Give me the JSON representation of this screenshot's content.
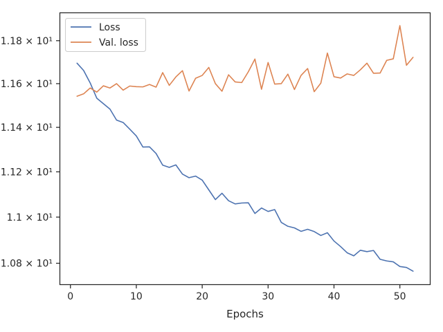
{
  "chart_data": {
    "type": "line",
    "title": "",
    "xlabel": "Epochs",
    "ylabel": "",
    "xlim": [
      -1.55,
      54.55
    ],
    "ylim": [
      10.71,
      11.93
    ],
    "yscale": "log",
    "grid": false,
    "legend_position": "top-left",
    "x_ticks": [
      0,
      10,
      20,
      30,
      40,
      50
    ],
    "x_tick_labels": [
      "0",
      "10",
      "20",
      "30",
      "40",
      "50"
    ],
    "y_ticks": [
      10.8,
      11.0,
      11.2,
      11.4,
      11.6,
      11.8
    ],
    "y_tick_labels": [
      "1.08 × 10¹",
      "1.1 × 10¹",
      "1.12 × 10¹",
      "1.14 × 10¹",
      "1.16 × 10¹",
      "1.18 × 10¹"
    ],
    "x": [
      1,
      2,
      3,
      4,
      5,
      6,
      7,
      8,
      9,
      10,
      11,
      12,
      13,
      14,
      15,
      16,
      17,
      18,
      19,
      20,
      21,
      22,
      23,
      24,
      25,
      26,
      27,
      28,
      29,
      30,
      31,
      32,
      33,
      34,
      35,
      36,
      37,
      38,
      39,
      40,
      41,
      42,
      43,
      44,
      45,
      46,
      47,
      48,
      49,
      50,
      51,
      52
    ],
    "series": [
      {
        "name": "Loss",
        "color": "#4c72b0",
        "values": [
          11.695,
          11.661,
          11.603,
          11.533,
          11.508,
          11.483,
          11.433,
          11.422,
          11.392,
          11.361,
          11.311,
          11.312,
          11.282,
          11.23,
          11.22,
          11.231,
          11.19,
          11.174,
          11.181,
          11.163,
          11.12,
          11.077,
          11.105,
          11.072,
          11.058,
          11.062,
          11.063,
          11.016,
          11.04,
          11.025,
          11.033,
          10.977,
          10.96,
          10.953,
          10.938,
          10.947,
          10.937,
          10.92,
          10.932,
          10.896,
          10.872,
          10.845,
          10.832,
          10.856,
          10.85,
          10.855,
          10.817,
          10.81,
          10.806,
          10.786,
          10.782,
          10.766
        ]
      },
      {
        "name": "Val. loss",
        "color": "#dd8452",
        "values": [
          11.542,
          11.553,
          11.58,
          11.561,
          11.59,
          11.58,
          11.6,
          11.57,
          11.589,
          11.586,
          11.585,
          11.596,
          11.584,
          11.651,
          11.592,
          11.631,
          11.66,
          11.566,
          11.625,
          11.638,
          11.675,
          11.6,
          11.565,
          11.641,
          11.608,
          11.605,
          11.655,
          11.714,
          11.574,
          11.698,
          11.598,
          11.6,
          11.644,
          11.573,
          11.638,
          11.67,
          11.563,
          11.602,
          11.742,
          11.632,
          11.626,
          11.645,
          11.638,
          11.664,
          11.695,
          11.648,
          11.649,
          11.708,
          11.715,
          11.871,
          11.685,
          11.722
        ]
      }
    ]
  }
}
